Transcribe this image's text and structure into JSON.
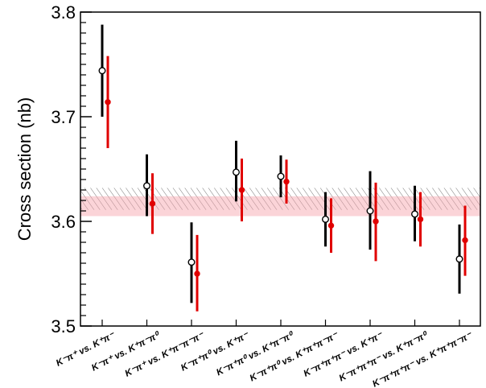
{
  "chart_data": {
    "type": "scatter",
    "ylabel": "Cross section (nb)",
    "ylim": [
      3.5,
      3.8
    ],
    "y_ticks": [
      "3.5",
      "3.6",
      "3.7",
      "3.8"
    ],
    "categories": [
      "K⁻π⁺ vs. K⁺π⁻",
      "K⁻π⁺ vs. K⁺π⁻π⁰",
      "K⁻π⁺ vs. K⁺π⁻π⁻π⁻",
      "K⁻π⁺π⁰ vs. K⁺π⁻",
      "K⁻π⁺π⁰ vs. K⁺π⁻π⁰",
      "K⁻π⁺π⁰ vs. K⁺π⁺π⁻π⁻",
      "K⁻π⁺π⁺π⁻ vs. K⁺π⁻",
      "K⁻π⁺π⁺π⁻ vs. K⁺π⁻π⁰",
      "K⁻π⁺π⁺π⁻ vs. K⁺π⁺π⁻π⁻"
    ],
    "series": [
      {
        "color": "#000000",
        "marker": "open-circle",
        "values": [
          3.744,
          3.634,
          3.561,
          3.647,
          3.643,
          3.602,
          3.61,
          3.607,
          3.564
        ],
        "err_low": [
          3.7,
          3.605,
          3.522,
          3.619,
          3.623,
          3.576,
          3.573,
          3.581,
          3.531
        ],
        "err_high": [
          3.788,
          3.664,
          3.599,
          3.677,
          3.663,
          3.628,
          3.648,
          3.634,
          3.597
        ]
      },
      {
        "color": "#e00000",
        "marker": "filled-circle",
        "values": [
          3.714,
          3.617,
          3.55,
          3.63,
          3.638,
          3.596,
          3.6,
          3.602,
          3.582
        ],
        "err_low": [
          3.67,
          3.588,
          3.514,
          3.6,
          3.617,
          3.57,
          3.562,
          3.576,
          3.548
        ],
        "err_high": [
          3.758,
          3.646,
          3.587,
          3.66,
          3.659,
          3.622,
          3.637,
          3.628,
          3.615
        ]
      }
    ],
    "bands": [
      {
        "style": "hatched-gray",
        "ylow": 3.611,
        "yhigh": 3.632
      },
      {
        "style": "filled-pink",
        "ylow": 3.605,
        "yhigh": 3.624
      }
    ],
    "grid": false,
    "legend": "none"
  }
}
